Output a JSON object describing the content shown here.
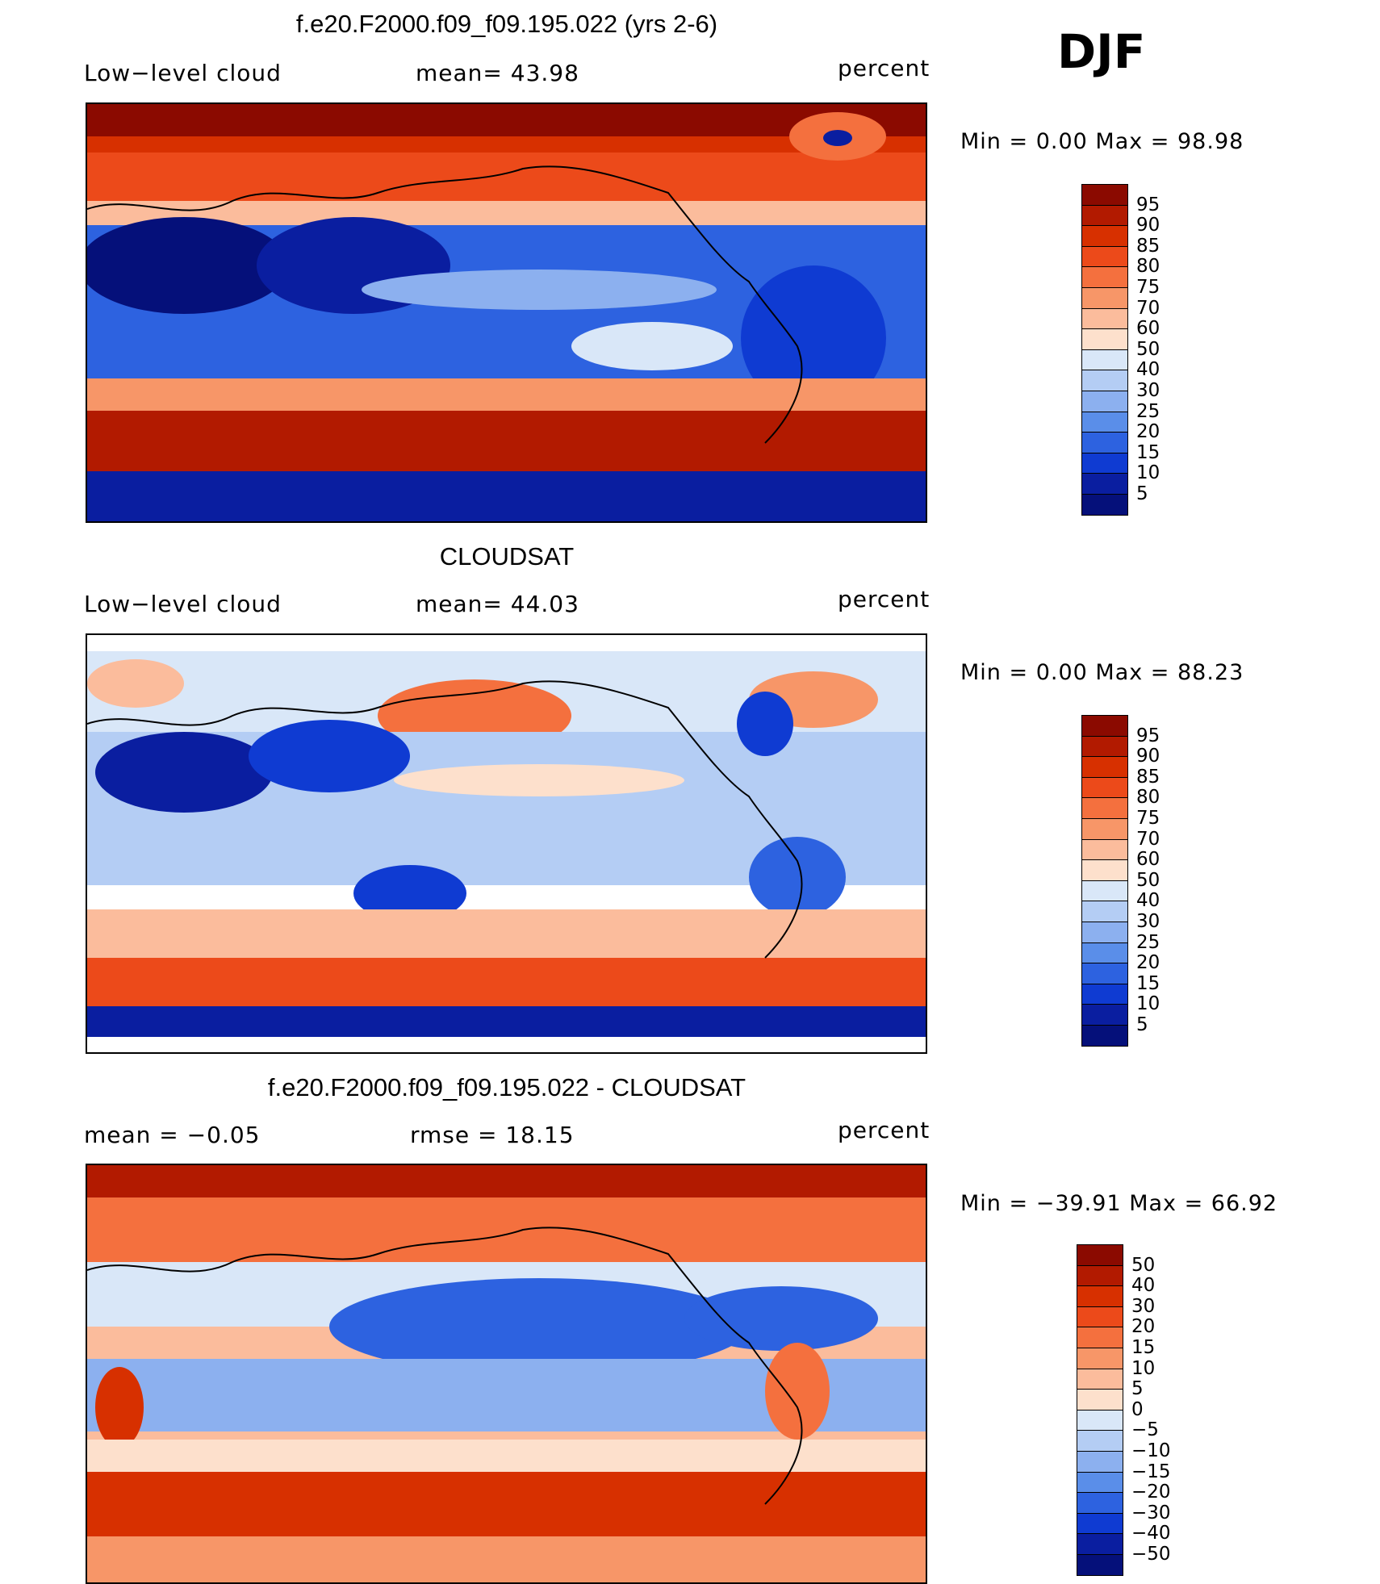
{
  "season": "DJF",
  "panels": [
    {
      "title": "f.e20.F2000.f09_f09.195.022 (yrs 2-6)",
      "left_label": "Low−level cloud",
      "center_label": "mean=   43.98",
      "units": "percent",
      "minmax": "Min =     0.00  Max =    98.98",
      "colorbar_levels": [
        "95",
        "90",
        "85",
        "80",
        "75",
        "70",
        "60",
        "50",
        "40",
        "30",
        "25",
        "20",
        "15",
        "10",
        "5"
      ],
      "colorbar_colors": [
        "#8b0a00",
        "#b21a00",
        "#d73000",
        "#ec4a1a",
        "#f4703e",
        "#f79668",
        "#fbbc9c",
        "#fde0cc",
        "#d9e7f8",
        "#b4cdf4",
        "#8cb0ef",
        "#5a8ee9",
        "#2d62e0",
        "#0f3bd2",
        "#0a1ea0",
        "#05107a"
      ]
    },
    {
      "title": "CLOUDSAT",
      "left_label": "Low−level cloud",
      "center_label": "mean=   44.03",
      "units": "percent",
      "minmax": "Min =     0.00  Max =    88.23",
      "colorbar_levels": [
        "95",
        "90",
        "85",
        "80",
        "75",
        "70",
        "60",
        "50",
        "40",
        "30",
        "25",
        "20",
        "15",
        "10",
        "5"
      ],
      "colorbar_colors": [
        "#8b0a00",
        "#b21a00",
        "#d73000",
        "#ec4a1a",
        "#f4703e",
        "#f79668",
        "#fbbc9c",
        "#fde0cc",
        "#d9e7f8",
        "#b4cdf4",
        "#8cb0ef",
        "#5a8ee9",
        "#2d62e0",
        "#0f3bd2",
        "#0a1ea0",
        "#05107a"
      ]
    },
    {
      "title": "f.e20.F2000.f09_f09.195.022 - CLOUDSAT",
      "left_label": "mean =    −0.05",
      "center_label": "rmse =     18.15",
      "units": "percent",
      "minmax": "Min = −39.91  Max =    66.92",
      "colorbar_levels": [
        "50",
        "40",
        "30",
        "20",
        "15",
        "10",
        "5",
        "0",
        "−5",
        "−10",
        "−15",
        "−20",
        "−30",
        "−40",
        "−50"
      ],
      "colorbar_colors": [
        "#8b0a00",
        "#b21a00",
        "#d73000",
        "#ec4a1a",
        "#f4703e",
        "#f79668",
        "#fbbc9c",
        "#fde0cc",
        "#d9e7f8",
        "#b4cdf4",
        "#8cb0ef",
        "#5a8ee9",
        "#2d62e0",
        "#0f3bd2",
        "#0a1ea0",
        "#05107a"
      ]
    }
  ],
  "palette": {
    "deep_red": "#8b0a00",
    "red": "#d73000",
    "orange": "#f4703e",
    "salmon": "#fbbc9c",
    "cream": "#fde0cc",
    "pale_blue": "#d9e7f8",
    "light_blue": "#8cb0ef",
    "blue": "#2d62e0",
    "deep_blue": "#05107a"
  }
}
